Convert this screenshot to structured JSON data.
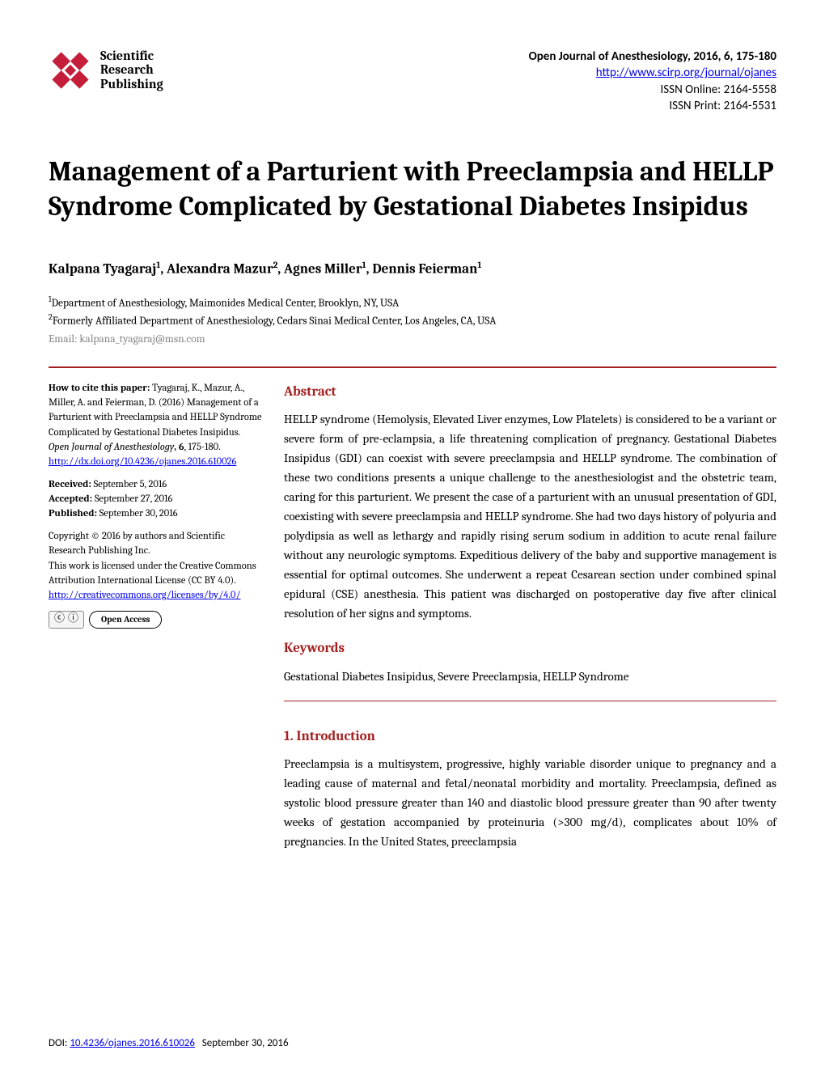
{
  "publisher": {
    "logo_text_line1": "Scientific",
    "logo_text_line2": "Research",
    "logo_text_line3": "Publishing",
    "logo_color": "#c41e3a"
  },
  "journal": {
    "citation_line": "Open Journal of Anesthesiology, 2016, 6, 175-180",
    "url": "http://www.scirp.org/journal/ojanes",
    "issn_online": "ISSN Online: 2164-5558",
    "issn_print": "ISSN Print: 2164-5531"
  },
  "paper": {
    "title": "Management of a Parturient with Preeclampsia and HELLP Syndrome Complicated by Gestational Diabetes Insipidus",
    "authors_html": "Kalpana Tyagaraj<sup>1</sup>, Alexandra Mazur<sup>2</sup>, Agnes Miller<sup>1</sup>, Dennis Feierman<sup>1</sup>",
    "affil1": "Department of Anesthesiology, Maimonides Medical Center, Brooklyn, NY, USA",
    "affil2": "Formerly Affiliated Department of Anesthesiology, Cedars Sinai Medical Center, Los Angeles, CA, USA",
    "email_label": "Email: kalpana_tyagaraj@msn.com"
  },
  "citebox": {
    "howto_label": "How to cite this paper:",
    "howto_text": " Tyagaraj, K., Mazur, A., Miller, A. and Feierman, D. (2016) Management of a Parturient with Preeclampsia and HELLP Syndrome Complicated by Gestational Diabetes Insipidus. ",
    "howto_journal": "Open Journal of Anesthesiology",
    "howto_vol": ", 6",
    "howto_pages": ", 175-180.",
    "doi": "http://dx.doi.org/10.4236/ojanes.2016.610026",
    "received_label": "Received:",
    "received": " September 5, 2016",
    "accepted_label": "Accepted:",
    "accepted": " September 27, 2016",
    "published_label": "Published:",
    "published": " September 30, 2016",
    "copyright": "Copyright © 2016 by authors and Scientific Research Publishing Inc.",
    "license": "This work is licensed under the Creative Commons Attribution International License (CC BY 4.0).",
    "license_url": "http://creativecommons.org/licenses/by/4.0/",
    "cc_glyph": "cc",
    "by_glyph": "①",
    "oa_label": "Open Access"
  },
  "sections": {
    "abstract_head": "Abstract",
    "abstract": "HELLP syndrome (Hemolysis, Elevated Liver enzymes, Low Platelets) is considered to be a variant or severe form of pre-eclampsia, a life threatening complication of pregnancy. Gestational Diabetes Insipidus (GDI) can coexist with severe preeclampsia and HELLP syndrome. The combination of these two conditions presents a unique challenge to the anesthesiologist and the obstetric team, caring for this parturient. We present the case of a parturient with an unusual presentation of GDI, coexisting with severe preeclampsia and HELLP syndrome. She had two days history of polyuria and polydipsia as well as lethargy and rapidly rising serum sodium in addition to acute renal failure without any neurologic symptoms. Expeditious delivery of the baby and supportive management is essential for optimal outcomes. She underwent a repeat Cesarean section under combined spinal epidural (CSE) anesthesia. This patient was discharged on postoperative day five after clinical resolution of her signs and symptoms.",
    "keywords_head": "Keywords",
    "keywords": "Gestational Diabetes Insipidus, Severe Preeclampsia, HELLP Syndrome",
    "intro_head": "1. Introduction",
    "intro": "Preeclampsia is a multisystem, progressive, highly variable disorder unique to pregnancy and a leading cause of maternal and fetal/neonatal morbidity and mortality. Preeclampsia, defined as systolic blood pressure greater than 140 and diastolic blood pressure greater than 90 after twenty weeks of gestation accompanied by proteinuria (>300 mg/d), complicates about 10% of pregnancies. In the United States, preeclampsia"
  },
  "footer": {
    "doi_label": "DOI: ",
    "doi": "10.4236/ojanes.2016.610026",
    "date": "September 30, 2016"
  },
  "colors": {
    "accent": "#a52020",
    "link": "#0000ee",
    "muted": "#888888"
  }
}
